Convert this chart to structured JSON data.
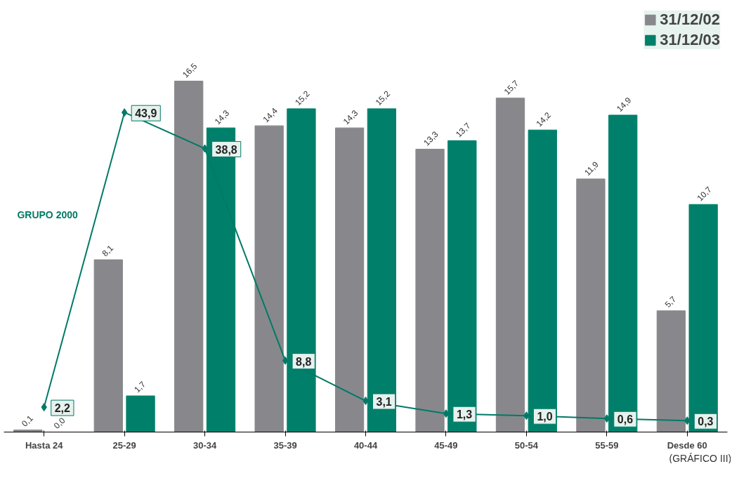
{
  "chart_data": {
    "type": "bar",
    "categories": [
      "Hasta 24",
      "25-29",
      "30-34",
      "35-39",
      "40-44",
      "45-49",
      "50-54",
      "55-59",
      "Desde 60"
    ],
    "series": [
      {
        "name": "31/12/02",
        "color": "#88888c",
        "values": [
          0.1,
          8.1,
          16.5,
          14.4,
          14.3,
          13.3,
          15.7,
          11.9,
          5.7
        ],
        "value_labels": [
          "0,1",
          "8,1",
          "16,5",
          "14,4",
          "14,3",
          "13,3",
          "15,7",
          "11,9",
          "5,7"
        ]
      },
      {
        "name": "31/12/03",
        "color": "#00806a",
        "values": [
          0.0,
          1.7,
          14.3,
          15.2,
          15.2,
          13.7,
          14.2,
          14.9,
          10.7
        ],
        "value_labels": [
          "0,0",
          "1,7",
          "14,3",
          "15,2",
          "15,2",
          "13,7",
          "14,2",
          "14,9",
          "10,7"
        ]
      },
      {
        "name": "GRUPO 2000",
        "type": "line",
        "axis": "y2",
        "color": "#007a66",
        "marker": "diamond",
        "values": [
          2.2,
          43.9,
          38.8,
          8.8,
          3.1,
          1.3,
          1.0,
          0.6,
          0.3
        ],
        "value_labels": [
          "2,2",
          "43,9",
          "38,8",
          "8,8",
          "3,1",
          "1,3",
          "1,0",
          "0,6",
          "0,3"
        ]
      }
    ],
    "tick_labels": "x",
    "legend": "top right",
    "grid": false,
    "annotations": [
      "(GRÁFICO III)"
    ]
  }
}
